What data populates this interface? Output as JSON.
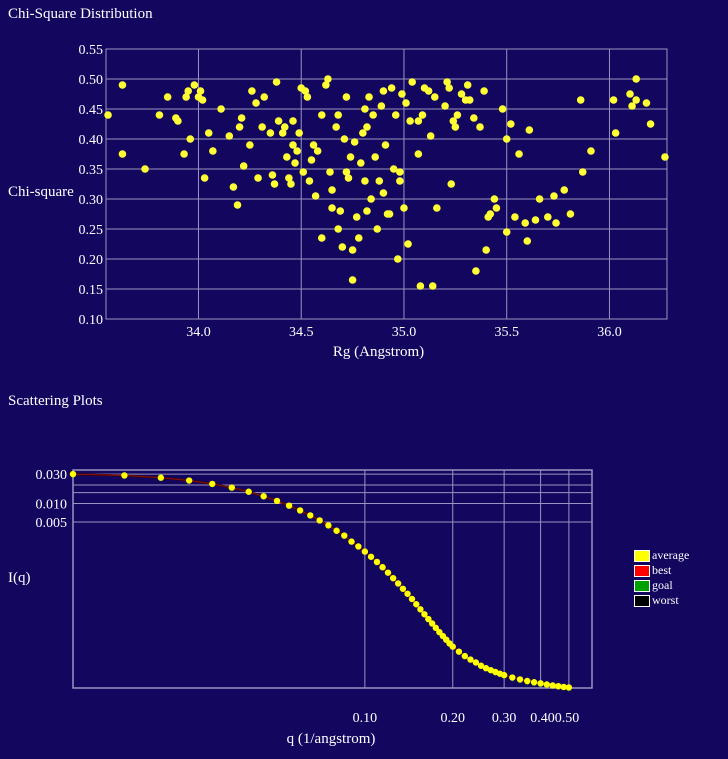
{
  "sections": {
    "chi_title": "Chi-Square Distribution",
    "scatter_title": "Scattering Plots"
  },
  "colors": {
    "background": "#12065e",
    "point": "#ffff33",
    "grid": "#9a94c0",
    "average": "#ffff00",
    "best": "#ff0000",
    "goal": "#00a000",
    "worst": "#000000"
  },
  "chart_data": [
    {
      "type": "scatter",
      "title": "",
      "xlabel": "Rg (Angstrom)",
      "ylabel": "Chi-square",
      "xlim": [
        33.55,
        36.28
      ],
      "ylim": [
        0.1,
        0.55
      ],
      "xticks": [
        "34.0",
        "34.5",
        "35.0",
        "35.5",
        "36.0"
      ],
      "yticks": [
        "0.10",
        "0.15",
        "0.20",
        "0.25",
        "0.30",
        "0.35",
        "0.40",
        "0.45",
        "0.50",
        "0.55"
      ],
      "grid": true,
      "points": [
        [
          33.56,
          0.44
        ],
        [
          33.63,
          0.49
        ],
        [
          33.63,
          0.375
        ],
        [
          33.74,
          0.35
        ],
        [
          33.81,
          0.44
        ],
        [
          33.85,
          0.47
        ],
        [
          33.89,
          0.435
        ],
        [
          33.9,
          0.43
        ],
        [
          33.93,
          0.375
        ],
        [
          33.94,
          0.47
        ],
        [
          33.95,
          0.48
        ],
        [
          33.96,
          0.4
        ],
        [
          33.98,
          0.49
        ],
        [
          34.0,
          0.47
        ],
        [
          34.01,
          0.48
        ],
        [
          34.02,
          0.465
        ],
        [
          34.03,
          0.335
        ],
        [
          34.05,
          0.41
        ],
        [
          34.07,
          0.38
        ],
        [
          34.11,
          0.45
        ],
        [
          34.15,
          0.405
        ],
        [
          34.17,
          0.32
        ],
        [
          34.19,
          0.29
        ],
        [
          34.2,
          0.42
        ],
        [
          34.21,
          0.435
        ],
        [
          34.22,
          0.355
        ],
        [
          34.25,
          0.39
        ],
        [
          34.26,
          0.48
        ],
        [
          34.28,
          0.46
        ],
        [
          34.29,
          0.335
        ],
        [
          34.31,
          0.42
        ],
        [
          34.32,
          0.47
        ],
        [
          34.36,
          0.34
        ],
        [
          34.37,
          0.325
        ],
        [
          34.38,
          0.495
        ],
        [
          34.39,
          0.43
        ],
        [
          34.41,
          0.41
        ],
        [
          34.42,
          0.42
        ],
        [
          34.43,
          0.37
        ],
        [
          34.44,
          0.335
        ],
        [
          34.45,
          0.325
        ],
        [
          34.46,
          0.43
        ],
        [
          34.46,
          0.39
        ],
        [
          34.47,
          0.36
        ],
        [
          34.48,
          0.38
        ],
        [
          34.49,
          0.41
        ],
        [
          34.5,
          0.485
        ],
        [
          34.51,
          0.345
        ],
        [
          34.52,
          0.48
        ],
        [
          34.53,
          0.47
        ],
        [
          34.54,
          0.33
        ],
        [
          34.55,
          0.365
        ],
        [
          34.56,
          0.39
        ],
        [
          34.57,
          0.305
        ],
        [
          34.6,
          0.44
        ],
        [
          34.6,
          0.235
        ],
        [
          34.62,
          0.49
        ],
        [
          34.63,
          0.5
        ],
        [
          34.64,
          0.345
        ],
        [
          34.65,
          0.315
        ],
        [
          34.65,
          0.285
        ],
        [
          34.67,
          0.42
        ],
        [
          34.68,
          0.25
        ],
        [
          34.69,
          0.28
        ],
        [
          34.7,
          0.22
        ],
        [
          34.71,
          0.4
        ],
        [
          34.72,
          0.47
        ],
        [
          34.73,
          0.335
        ],
        [
          34.74,
          0.37
        ],
        [
          34.75,
          0.215
        ],
        [
          34.75,
          0.165
        ],
        [
          34.77,
          0.27
        ],
        [
          34.78,
          0.235
        ],
        [
          34.79,
          0.36
        ],
        [
          34.8,
          0.41
        ],
        [
          34.81,
          0.45
        ],
        [
          34.81,
          0.33
        ],
        [
          34.82,
          0.42
        ],
        [
          34.82,
          0.28
        ],
        [
          34.83,
          0.47
        ],
        [
          34.84,
          0.3
        ],
        [
          34.85,
          0.44
        ],
        [
          34.86,
          0.37
        ],
        [
          34.87,
          0.25
        ],
        [
          34.88,
          0.33
        ],
        [
          34.89,
          0.455
        ],
        [
          34.9,
          0.48
        ],
        [
          34.91,
          0.39
        ],
        [
          34.92,
          0.275
        ],
        [
          34.93,
          0.275
        ],
        [
          34.94,
          0.485
        ],
        [
          34.95,
          0.35
        ],
        [
          34.96,
          0.44
        ],
        [
          34.97,
          0.2
        ],
        [
          34.98,
          0.345
        ],
        [
          34.99,
          0.475
        ],
        [
          35.0,
          0.285
        ],
        [
          35.01,
          0.46
        ],
        [
          35.02,
          0.225
        ],
        [
          35.03,
          0.43
        ],
        [
          35.04,
          0.495
        ],
        [
          35.07,
          0.375
        ],
        [
          35.08,
          0.155
        ],
        [
          35.09,
          0.44
        ],
        [
          35.1,
          0.485
        ],
        [
          35.12,
          0.48
        ],
        [
          35.13,
          0.405
        ],
        [
          35.14,
          0.155
        ],
        [
          35.15,
          0.47
        ],
        [
          35.16,
          0.285
        ],
        [
          35.2,
          0.455
        ],
        [
          35.21,
          0.495
        ],
        [
          35.22,
          0.485
        ],
        [
          35.23,
          0.325
        ],
        [
          35.24,
          0.43
        ],
        [
          35.25,
          0.42
        ],
        [
          35.26,
          0.44
        ],
        [
          35.28,
          0.475
        ],
        [
          35.3,
          0.465
        ],
        [
          35.31,
          0.49
        ],
        [
          35.32,
          0.465
        ],
        [
          35.34,
          0.435
        ],
        [
          35.35,
          0.18
        ],
        [
          35.37,
          0.42
        ],
        [
          35.39,
          0.48
        ],
        [
          35.4,
          0.215
        ],
        [
          35.41,
          0.27
        ],
        [
          35.42,
          0.275
        ],
        [
          35.44,
          0.3
        ],
        [
          35.45,
          0.285
        ],
        [
          35.48,
          0.45
        ],
        [
          35.5,
          0.4
        ],
        [
          35.5,
          0.245
        ],
        [
          35.52,
          0.425
        ],
        [
          35.54,
          0.27
        ],
        [
          35.56,
          0.375
        ],
        [
          35.59,
          0.26
        ],
        [
          35.6,
          0.23
        ],
        [
          35.61,
          0.415
        ],
        [
          35.64,
          0.265
        ],
        [
          35.66,
          0.3
        ],
        [
          35.7,
          0.27
        ],
        [
          35.73,
          0.305
        ],
        [
          35.74,
          0.26
        ],
        [
          35.78,
          0.315
        ],
        [
          35.81,
          0.275
        ],
        [
          35.86,
          0.465
        ],
        [
          35.87,
          0.345
        ],
        [
          35.91,
          0.38
        ],
        [
          36.02,
          0.465
        ],
        [
          36.03,
          0.41
        ],
        [
          36.1,
          0.475
        ],
        [
          36.11,
          0.455
        ],
        [
          36.13,
          0.465
        ],
        [
          36.13,
          0.5
        ],
        [
          36.18,
          0.46
        ],
        [
          36.2,
          0.425
        ],
        [
          36.27,
          0.37
        ],
        [
          34.58,
          0.38
        ],
        [
          34.72,
          0.345
        ],
        [
          34.9,
          0.31
        ],
        [
          34.76,
          0.395
        ],
        [
          35.07,
          0.43
        ],
        [
          34.35,
          0.41
        ],
        [
          34.68,
          0.44
        ],
        [
          34.98,
          0.33
        ]
      ]
    },
    {
      "type": "line",
      "title": "",
      "xlabel": "q (1/angstrom)",
      "ylabel": "I(q)",
      "xscale": "log",
      "yscale": "log",
      "xlim": [
        0.01,
        0.6
      ],
      "ylim": [
        1e-05,
        0.035
      ],
      "xticks": [
        "0.10",
        "0.20",
        "0.30",
        "0.400.50"
      ],
      "xtick_values": [
        0.1,
        0.2,
        0.3,
        0.4,
        0.5
      ],
      "yticks": [
        "0.030",
        "0.010",
        "0.005"
      ],
      "ytick_values": [
        0.03,
        0.01,
        0.005
      ],
      "grid": true,
      "legend": {
        "position": "right",
        "entries": [
          "average",
          "best",
          "goal",
          "worst"
        ]
      },
      "series": [
        {
          "name": "average",
          "style": "dotted-yellow",
          "q": [
            0.01,
            0.015,
            0.02,
            0.025,
            0.03,
            0.035,
            0.04,
            0.045,
            0.05,
            0.055,
            0.06,
            0.065,
            0.07,
            0.075,
            0.08,
            0.085,
            0.09,
            0.095,
            0.1,
            0.105,
            0.11,
            0.115,
            0.12,
            0.125,
            0.13,
            0.135,
            0.14,
            0.145,
            0.15,
            0.155,
            0.16,
            0.165,
            0.17,
            0.175,
            0.18,
            0.185,
            0.19,
            0.195,
            0.2,
            0.21,
            0.22,
            0.23,
            0.24,
            0.25,
            0.26,
            0.27,
            0.28,
            0.29,
            0.3,
            0.32,
            0.34,
            0.36,
            0.38,
            0.4,
            0.42,
            0.44,
            0.46,
            0.48,
            0.5
          ],
          "I": [
            0.03,
            0.0285,
            0.0262,
            0.0236,
            0.0208,
            0.0181,
            0.0155,
            0.0131,
            0.011,
            0.0092,
            0.0077,
            0.0064,
            0.0053,
            0.0044,
            0.0036,
            0.003,
            0.0024,
            0.002,
            0.00165,
            0.00136,
            0.00112,
            0.00092,
            0.00075,
            0.00061,
            0.0005,
            0.00041,
            0.00034,
            0.00028,
            0.00023,
            0.00019,
            0.000158,
            0.000132,
            0.000112,
            9.5e-05,
            8.1e-05,
            7e-05,
            6.1e-05,
            5.3e-05,
            4.7e-05,
            3.9e-05,
            3.3e-05,
            2.9e-05,
            2.6e-05,
            2.3e-05,
            2.1e-05,
            1.95e-05,
            1.82e-05,
            1.71e-05,
            1.62e-05,
            1.48e-05,
            1.38e-05,
            1.3e-05,
            1.24e-05,
            1.19e-05,
            1.14e-05,
            1.1e-05,
            1.07e-05,
            1.04e-05,
            1.02e-05
          ]
        },
        {
          "name": "goal",
          "style": "star-green",
          "q": [
            0.23,
            0.24,
            0.25,
            0.26,
            0.27,
            0.28,
            0.29,
            0.3,
            0.32,
            0.34,
            0.36,
            0.38,
            0.4,
            0.42,
            0.44,
            0.46,
            0.48,
            0.5
          ],
          "I": [
            2.7e-05,
            2.4e-05,
            2.15e-05,
            1.95e-05,
            1.78e-05,
            1.66e-05,
            1.54e-05,
            1.46e-05,
            1.32e-05,
            1.22e-05,
            1.14e-05,
            1.1e-05,
            1.06e-05,
            1.04e-05,
            1e-05,
            9.7e-06,
            9.4e-06,
            9.1e-06
          ]
        }
      ]
    }
  ]
}
